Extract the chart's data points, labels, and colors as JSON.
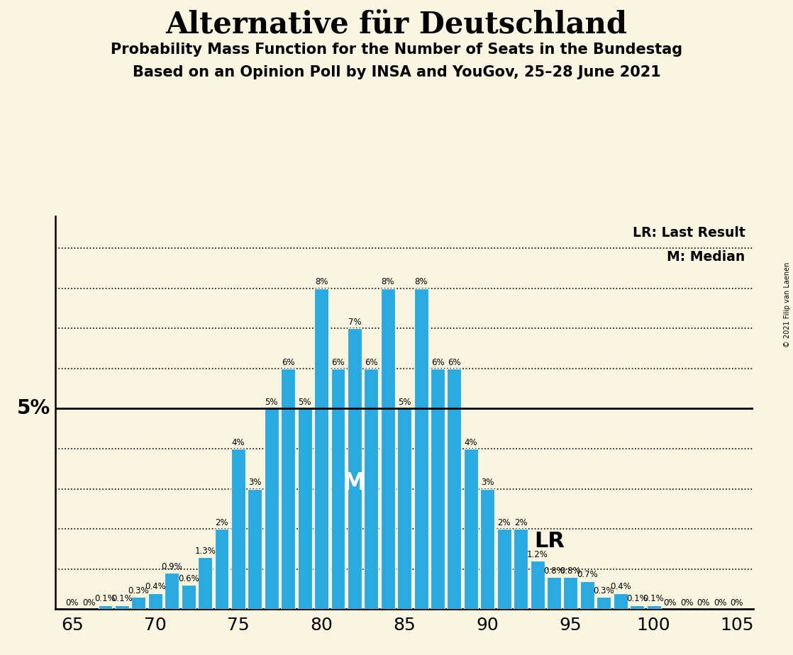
{
  "title": "Alternative für Deutschland",
  "subtitle1": "Probability Mass Function for the Number of Seats in the Bundestag",
  "subtitle2": "Based on an Opinion Poll by INSA and YouGov, 25–28 June 2021",
  "copyright": "© 2021 Filip van Laenen",
  "background_color": "#FAF5E1",
  "bar_color": "#29ABE2",
  "bar_edge_color": "#FAF5E1",
  "seats": [
    65,
    66,
    67,
    68,
    69,
    70,
    71,
    72,
    73,
    74,
    75,
    76,
    77,
    78,
    79,
    80,
    81,
    82,
    83,
    84,
    85,
    86,
    87,
    88,
    89,
    90,
    91,
    92,
    93,
    94,
    95,
    96,
    97,
    98,
    99,
    100,
    101,
    102,
    103,
    104,
    105
  ],
  "probabilities": [
    0.0,
    0.0,
    0.1,
    0.1,
    0.3,
    0.4,
    0.9,
    0.6,
    1.3,
    2.0,
    4.0,
    3.0,
    5.0,
    6.0,
    5.0,
    8.0,
    6.0,
    7.0,
    6.0,
    8.0,
    5.0,
    8.0,
    6.0,
    6.0,
    4.0,
    3.0,
    2.0,
    2.0,
    1.2,
    0.8,
    0.8,
    0.7,
    0.3,
    0.4,
    0.1,
    0.1,
    0.0,
    0.0,
    0.0,
    0.0,
    0.0
  ],
  "median_seat": 82,
  "lr_seat": 91,
  "five_pct_line": 5.0,
  "xlim": [
    64.0,
    106.0
  ],
  "ylim": [
    0,
    9.8
  ],
  "xticks": [
    65,
    70,
    75,
    80,
    85,
    90,
    95,
    100,
    105
  ],
  "yticks_dotted": [
    1.0,
    2.0,
    3.0,
    4.0,
    6.0,
    7.0,
    8.0,
    9.0
  ],
  "label_fontsize": 8.5,
  "title_fontsize": 30,
  "subtitle_fontsize": 15,
  "lr_label": "LR",
  "m_label": "M",
  "five_pct_label": "5%",
  "legend_lr": "LR: Last Result",
  "legend_m": "M: Median"
}
